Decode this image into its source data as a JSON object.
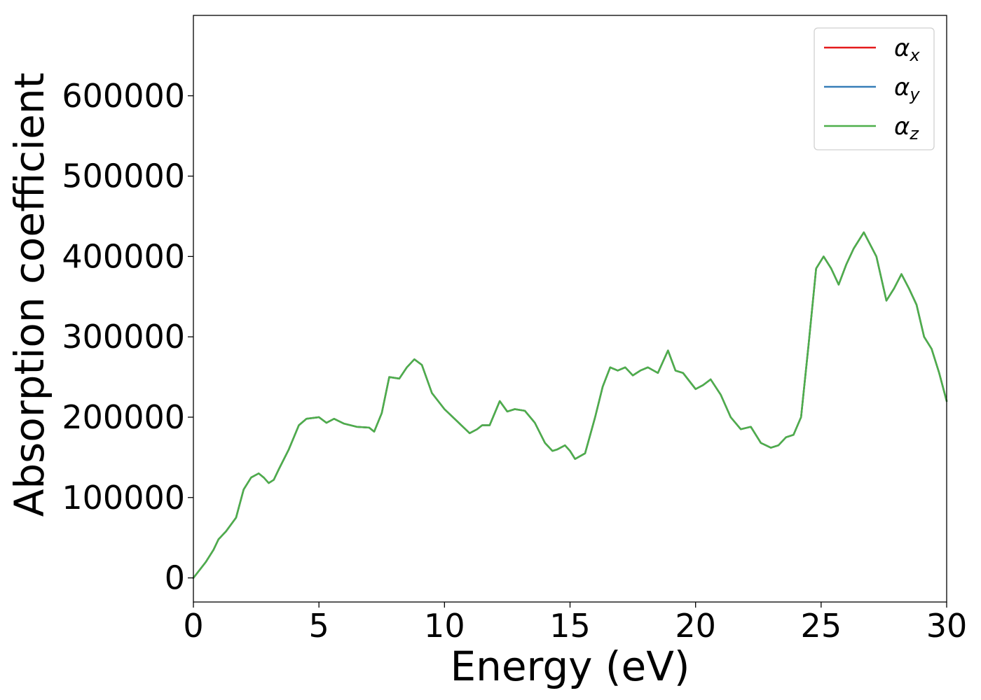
{
  "chart_data": {
    "type": "line",
    "title": "",
    "xlabel": "Energy (eV)",
    "ylabel": "Absorption coefficient",
    "xlim": [
      0,
      30
    ],
    "ylim": [
      -30000,
      700000
    ],
    "xticks": [
      0,
      5,
      10,
      15,
      20,
      25,
      30
    ],
    "yticks": [
      0,
      100000,
      200000,
      300000,
      400000,
      500000,
      600000
    ],
    "grid": false,
    "legend_position": "top-right",
    "legend": [
      {
        "symbol": "α",
        "subscript": "x",
        "color": "#e41a1c"
      },
      {
        "symbol": "α",
        "subscript": "y",
        "color": "#377eb8"
      },
      {
        "symbol": "α",
        "subscript": "z",
        "color": "#4daf4a"
      }
    ],
    "x": [
      0,
      0.5,
      0.8,
      1.0,
      1.3,
      1.7,
      2.0,
      2.3,
      2.6,
      2.8,
      3.0,
      3.2,
      3.4,
      3.8,
      4.2,
      4.5,
      5.0,
      5.3,
      5.6,
      6.0,
      6.5,
      7.0,
      7.2,
      7.5,
      7.8,
      8.2,
      8.5,
      8.8,
      9.1,
      9.5,
      10.0,
      10.5,
      11.0,
      11.3,
      11.5,
      11.8,
      12.2,
      12.5,
      12.8,
      13.2,
      13.6,
      14.0,
      14.3,
      14.5,
      14.8,
      15.0,
      15.2,
      15.6,
      16.0,
      16.3,
      16.6,
      16.9,
      17.2,
      17.5,
      17.8,
      18.1,
      18.5,
      18.9,
      19.2,
      19.5,
      20.0,
      20.3,
      20.6,
      21.0,
      21.4,
      21.8,
      22.2,
      22.6,
      23.0,
      23.3,
      23.6,
      23.9,
      24.2,
      24.5,
      24.8,
      25.1,
      25.4,
      25.7,
      26.0,
      26.3,
      26.7,
      27.2,
      27.6,
      27.9,
      28.2,
      28.5,
      28.8,
      29.1,
      29.4,
      29.7,
      30.0
    ],
    "series": [
      {
        "values": [
          0,
          20000,
          35000,
          48000,
          58000,
          75000,
          110000,
          125000,
          130000,
          125000,
          118000,
          122000,
          135000,
          160000,
          190000,
          198000,
          200000,
          193000,
          198000,
          192000,
          188000,
          187000,
          182000,
          205000,
          250000,
          248000,
          262000,
          272000,
          265000,
          230000,
          210000,
          195000,
          180000,
          185000,
          190000,
          190000,
          220000,
          207000,
          210000,
          208000,
          193000,
          168000,
          158000,
          160000,
          165000,
          158000,
          148000,
          155000,
          200000,
          238000,
          262000,
          258000,
          262000,
          252000,
          258000,
          262000,
          255000,
          283000,
          258000,
          255000,
          235000,
          240000,
          247000,
          228000,
          200000,
          185000,
          188000,
          168000,
          162000,
          165000,
          175000,
          178000,
          200000,
          290000,
          385000,
          400000,
          385000,
          365000,
          390000,
          410000,
          430000,
          400000,
          345000,
          360000,
          378000,
          360000,
          340000,
          300000,
          285000,
          255000,
          220000
        ]
      },
      {
        "values": [
          0,
          20000,
          35000,
          48000,
          58000,
          75000,
          110000,
          125000,
          130000,
          125000,
          118000,
          122000,
          135000,
          160000,
          190000,
          198000,
          200000,
          193000,
          198000,
          192000,
          188000,
          187000,
          182000,
          205000,
          250000,
          248000,
          262000,
          272000,
          265000,
          230000,
          210000,
          195000,
          180000,
          185000,
          190000,
          190000,
          220000,
          207000,
          210000,
          208000,
          193000,
          168000,
          158000,
          160000,
          165000,
          158000,
          148000,
          155000,
          200000,
          238000,
          262000,
          258000,
          262000,
          252000,
          258000,
          262000,
          255000,
          283000,
          258000,
          255000,
          235000,
          240000,
          247000,
          228000,
          200000,
          185000,
          188000,
          168000,
          162000,
          165000,
          175000,
          178000,
          200000,
          290000,
          385000,
          400000,
          385000,
          365000,
          390000,
          410000,
          430000,
          400000,
          345000,
          360000,
          378000,
          360000,
          340000,
          300000,
          285000,
          255000,
          220000
        ]
      },
      {
        "values": [
          0,
          20000,
          35000,
          48000,
          58000,
          75000,
          110000,
          125000,
          130000,
          125000,
          118000,
          122000,
          135000,
          160000,
          190000,
          198000,
          200000,
          193000,
          198000,
          192000,
          188000,
          187000,
          182000,
          205000,
          250000,
          248000,
          262000,
          272000,
          265000,
          230000,
          210000,
          195000,
          180000,
          185000,
          190000,
          190000,
          220000,
          207000,
          210000,
          208000,
          193000,
          168000,
          158000,
          160000,
          165000,
          158000,
          148000,
          155000,
          200000,
          238000,
          262000,
          258000,
          262000,
          252000,
          258000,
          262000,
          255000,
          283000,
          258000,
          255000,
          235000,
          240000,
          247000,
          228000,
          200000,
          185000,
          188000,
          168000,
          162000,
          165000,
          175000,
          178000,
          200000,
          290000,
          385000,
          400000,
          385000,
          365000,
          390000,
          410000,
          430000,
          400000,
          345000,
          360000,
          378000,
          360000,
          340000,
          300000,
          285000,
          255000,
          220000
        ]
      }
    ]
  }
}
